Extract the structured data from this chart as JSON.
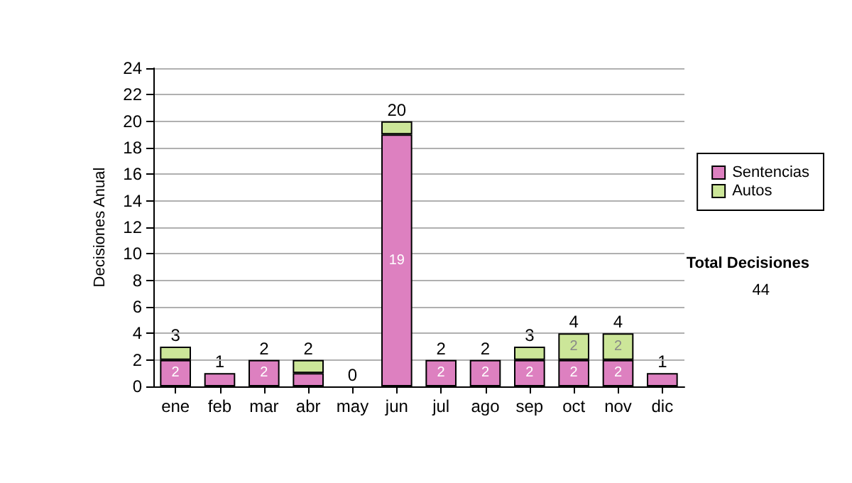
{
  "chart_data": {
    "type": "bar",
    "stacked": true,
    "ylabel": "Decisiones Anual",
    "categories": [
      "ene",
      "feb",
      "mar",
      "abr",
      "may",
      "jun",
      "jul",
      "ago",
      "sep",
      "oct",
      "nov",
      "dic"
    ],
    "series": [
      {
        "name": "Sentencias",
        "color": "#dd80c0",
        "values": [
          2,
          1,
          2,
          1,
          0,
          19,
          2,
          2,
          2,
          2,
          2,
          1
        ],
        "value_labels": [
          "2",
          null,
          "2",
          null,
          null,
          "19",
          "2",
          "2",
          "2",
          "2",
          "2",
          null
        ]
      },
      {
        "name": "Autos",
        "color": "#cce699",
        "values": [
          1,
          0,
          0,
          1,
          0,
          1,
          0,
          0,
          1,
          2,
          2,
          0
        ],
        "value_labels": [
          null,
          null,
          null,
          null,
          null,
          null,
          null,
          null,
          null,
          "2",
          "2",
          null
        ]
      }
    ],
    "totals": [
      "3",
      "1",
      "2",
      "2",
      "0",
      "20",
      "2",
      "2",
      "3",
      "4",
      "4",
      "1"
    ],
    "ylim": [
      0,
      24
    ],
    "yticks": [
      0,
      2,
      4,
      6,
      8,
      10,
      12,
      14,
      16,
      18,
      20,
      22,
      24
    ],
    "grid": "y",
    "legend": "right",
    "annotations": [
      "Total Decisiones",
      "44"
    ]
  }
}
